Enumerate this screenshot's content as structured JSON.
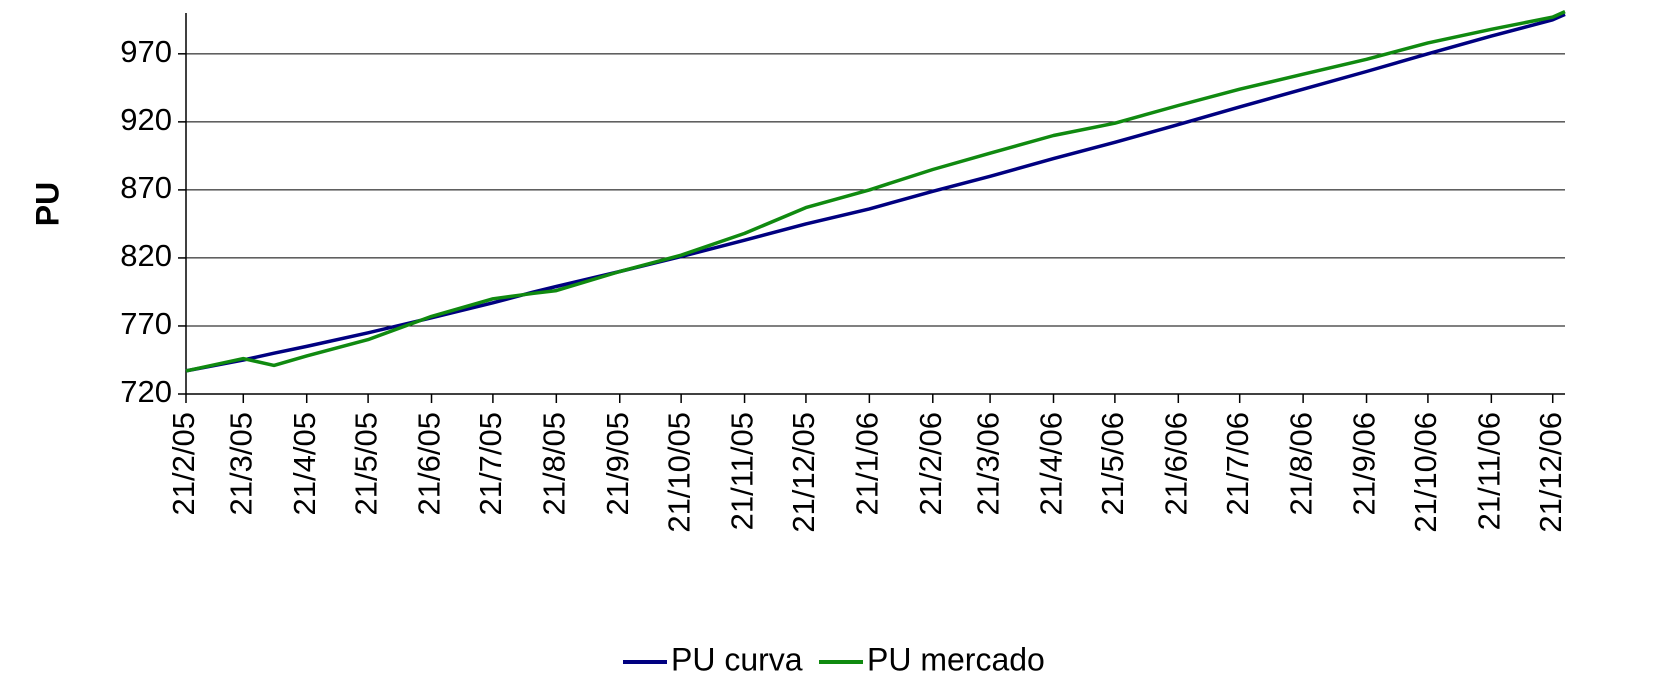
{
  "chart_data": {
    "type": "line",
    "y_label": "PU",
    "x": [
      "21/2/05",
      "21/3/05",
      "5/4/05",
      "21/4/05",
      "21/5/05",
      "21/6/05",
      "21/7/05",
      "10/8/05",
      "21/8/05",
      "21/9/05",
      "21/10/05",
      "21/11/05",
      "21/12/05",
      "21/1/06",
      "21/2/06",
      "21/3/06",
      "21/4/06",
      "21/5/06",
      "21/6/06",
      "21/7/06",
      "21/8/06",
      "21/9/06",
      "21/10/06",
      "21/11/06",
      "21/12/06",
      "27/12/06"
    ],
    "series": [
      {
        "name": "PU curva",
        "color": "#000080",
        "values": [
          737,
          745,
          750,
          755,
          765,
          776,
          787,
          795,
          799,
          810,
          821,
          833,
          845,
          856,
          869,
          880,
          893,
          905,
          918,
          931,
          944,
          957,
          970,
          983,
          995,
          999
        ]
      },
      {
        "name": "PU mercado",
        "color": "#108a10",
        "values": [
          737,
          746,
          741,
          748,
          760,
          777,
          790,
          794,
          796,
          810,
          822,
          838,
          857,
          870,
          885,
          897,
          910,
          919,
          932,
          944,
          955,
          966,
          978,
          988,
          997,
          1001
        ]
      }
    ],
    "xlim": [
      "21/2/05",
      "27/12/06"
    ],
    "xticks": [
      "21/2/05",
      "21/3/05",
      "21/4/05",
      "21/5/05",
      "21/6/05",
      "21/7/05",
      "21/8/05",
      "21/9/05",
      "21/10/05",
      "21/11/05",
      "21/12/05",
      "21/1/06",
      "21/2/06",
      "21/3/06",
      "21/4/06",
      "21/5/06",
      "21/6/06",
      "21/7/06",
      "21/8/06",
      "21/9/06",
      "21/10/06",
      "21/11/06",
      "21/12/06"
    ],
    "ylim": [
      720,
      1000
    ],
    "yticks": [
      720,
      770,
      820,
      870,
      920,
      970
    ],
    "grid": true,
    "legend": "bottom"
  }
}
